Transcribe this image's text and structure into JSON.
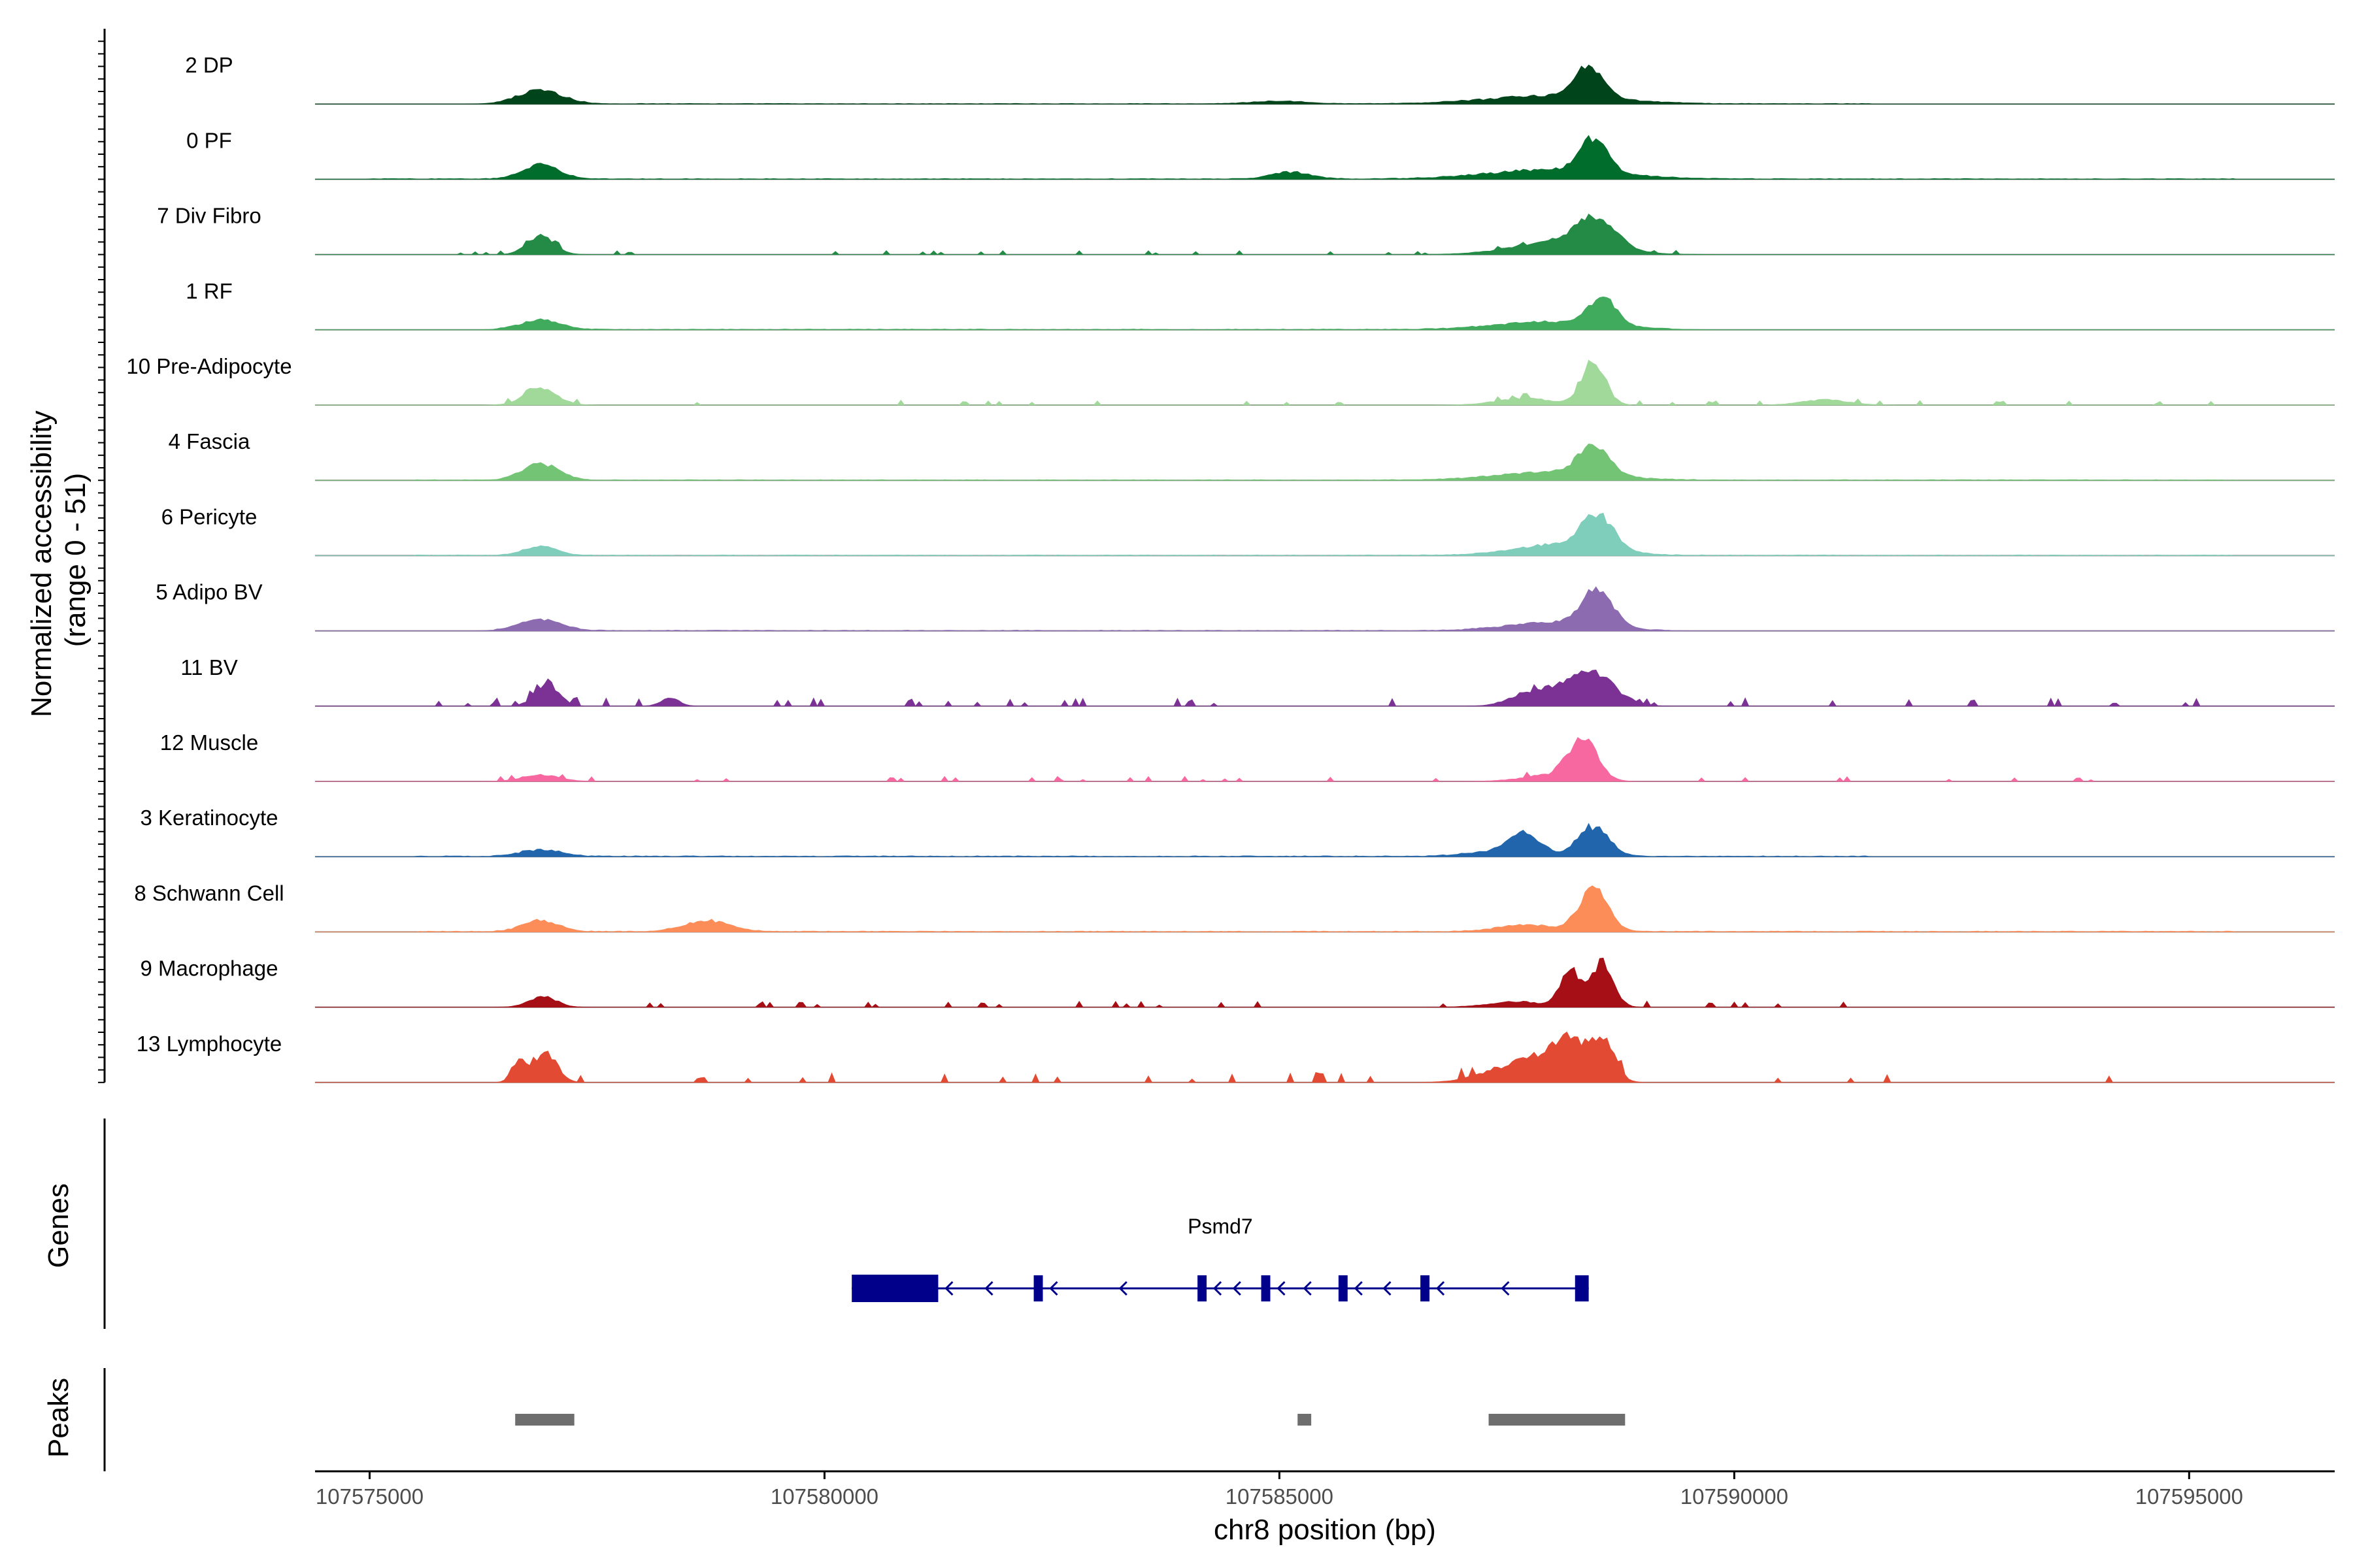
{
  "chart_data": {
    "type": "area",
    "title": "",
    "ylabel": "Normalized accessibility\n(range 0 - 51)",
    "xlabel": "chr8 position (bp)",
    "xlim": [
      107574400,
      107596600
    ],
    "x_ticks": [
      107575000,
      107580000,
      107585000,
      107590000,
      107595000
    ],
    "x_tick_labels": [
      "107575000",
      "107580000",
      "107585000",
      "107590000",
      "107595000"
    ],
    "grid": false,
    "legend": "none",
    "y_scale_max": 51,
    "tracks": [
      {
        "name": "2 DP",
        "color": "#00441b",
        "peaks": [
          [
            107576880,
            10,
            240
          ],
          [
            107588000,
            6,
            700
          ],
          [
            107588400,
            22,
            160
          ],
          [
            107585000,
            2,
            300
          ]
        ],
        "noise": 0.4,
        "noise_range": [
          107576400,
          107591500
        ],
        "sparse": false
      },
      {
        "name": "0 PF",
        "color": "#006d2c",
        "peaks": [
          [
            107576880,
            11,
            200
          ],
          [
            107585120,
            5,
            220
          ],
          [
            107588000,
            7,
            700
          ],
          [
            107588450,
            26,
            150
          ]
        ],
        "noise": 0.5,
        "noise_range": [
          107575000,
          107595500
        ],
        "sparse": false
      },
      {
        "name": "7 Div Fibro",
        "color": "#238b45",
        "peaks": [
          [
            107576880,
            14,
            150
          ],
          [
            107588100,
            10,
            500
          ],
          [
            107588500,
            22,
            200
          ]
        ],
        "noise": 1.0,
        "noise_range": [
          107575800,
          107589500
        ],
        "sparse": true
      },
      {
        "name": "1 RF",
        "color": "#41ab5d",
        "peaks": [
          [
            107576880,
            7,
            220
          ],
          [
            107588000,
            6,
            600
          ],
          [
            107588550,
            20,
            150
          ]
        ],
        "noise": 0.5,
        "noise_range": [
          107576400,
          107589300
        ],
        "sparse": false
      },
      {
        "name": "10 Pre-Adipocyte",
        "color": "#a1d99b",
        "peaks": [
          [
            107576880,
            12,
            180
          ],
          [
            107588450,
            32,
            130
          ],
          [
            107587700,
            5,
            300
          ],
          [
            107591000,
            4,
            250
          ]
        ],
        "noise": 1.2,
        "noise_range": [
          107576400,
          107595500
        ],
        "sparse": true
      },
      {
        "name": "4 Fascia",
        "color": "#74c476",
        "peaks": [
          [
            107576880,
            12,
            200
          ],
          [
            107588000,
            6,
            600
          ],
          [
            107588450,
            21,
            170
          ]
        ],
        "noise": 0.5,
        "noise_range": [
          107575500,
          107595500
        ],
        "sparse": false
      },
      {
        "name": "6 Pericyte",
        "color": "#7fcdbb",
        "peaks": [
          [
            107576880,
            7,
            180
          ],
          [
            107588100,
            8,
            500
          ],
          [
            107588500,
            26,
            170
          ]
        ],
        "noise": 0.5,
        "noise_range": [
          107575500,
          107595500
        ],
        "sparse": false
      },
      {
        "name": "5 Adipo BV",
        "color": "#8c6bb1",
        "peaks": [
          [
            107576880,
            8,
            230
          ],
          [
            107588000,
            6,
            500
          ],
          [
            107588500,
            27,
            170
          ]
        ],
        "noise": 0.5,
        "noise_range": [
          107576400,
          107589300
        ],
        "sparse": false
      },
      {
        "name": "11 BV",
        "color": "#7b3294",
        "peaks": [
          [
            107576950,
            17,
            130
          ],
          [
            107578300,
            6,
            100
          ],
          [
            107588100,
            10,
            300
          ],
          [
            107588450,
            20,
            250
          ],
          [
            107587700,
            6,
            200
          ]
        ],
        "noise": 2.0,
        "noise_range": [
          107575500,
          107595500
        ],
        "sparse": true
      },
      {
        "name": "12 Muscle",
        "color": "#f768a1",
        "peaks": [
          [
            107576880,
            5,
            200
          ],
          [
            107588350,
            30,
            150
          ],
          [
            107588000,
            5,
            300
          ]
        ],
        "noise": 1.2,
        "noise_range": [
          107576400,
          107594000
        ],
        "sparse": true
      },
      {
        "name": "3 Keratinocyte",
        "color": "#2166ac",
        "peaks": [
          [
            107576880,
            5,
            220
          ],
          [
            107587700,
            16,
            180
          ],
          [
            107588450,
            22,
            170
          ],
          [
            107587300,
            3,
            300
          ]
        ],
        "noise": 0.6,
        "noise_range": [
          107575500,
          107591500
        ],
        "sparse": false
      },
      {
        "name": "8 Schwann Cell",
        "color": "#fc8d59",
        "peaks": [
          [
            107576880,
            8,
            200
          ],
          [
            107578700,
            8,
            250
          ],
          [
            107587700,
            5,
            300
          ],
          [
            107588450,
            31,
            160
          ]
        ],
        "noise": 0.6,
        "noise_range": [
          107575500,
          107595500
        ],
        "sparse": false
      },
      {
        "name": "9 Macrophage",
        "color": "#a50f15",
        "peaks": [
          [
            107576900,
            8,
            150
          ],
          [
            107588200,
            27,
            110
          ],
          [
            107588550,
            33,
            120
          ],
          [
            107587600,
            4,
            300
          ]
        ],
        "noise": 1.5,
        "noise_range": [
          107576400,
          107592500
        ],
        "sparse": true
      },
      {
        "name": "13 Lymphocyte",
        "color": "#e34a33",
        "peaks": [
          [
            107576650,
            18,
            80
          ],
          [
            107576950,
            21,
            120
          ],
          [
            107587500,
            11,
            300
          ],
          [
            107587900,
            15,
            200
          ],
          [
            107588200,
            29,
            150
          ],
          [
            107588550,
            33,
            130
          ]
        ],
        "noise": 2.5,
        "noise_range": [
          107576400,
          107594500
        ],
        "sparse": true
      }
    ],
    "genes_track": {
      "title": "Genes",
      "gene_name": "Psmd7",
      "color": "#00008b",
      "start": 107580300,
      "end": 107588400,
      "strand": "-",
      "exons": [
        [
          107580300,
          107581250
        ],
        [
          107582300,
          107582400
        ],
        [
          107584100,
          107584200
        ],
        [
          107584800,
          107584900
        ],
        [
          107585650,
          107585750
        ],
        [
          107586550,
          107586650
        ],
        [
          107588250,
          107588400
        ]
      ]
    },
    "peaks_track": {
      "title": "Peaks",
      "color": "#6e6e6e",
      "regions": [
        [
          107576600,
          107577250
        ],
        [
          107585200,
          107585350
        ],
        [
          107587300,
          107588800
        ]
      ]
    }
  }
}
